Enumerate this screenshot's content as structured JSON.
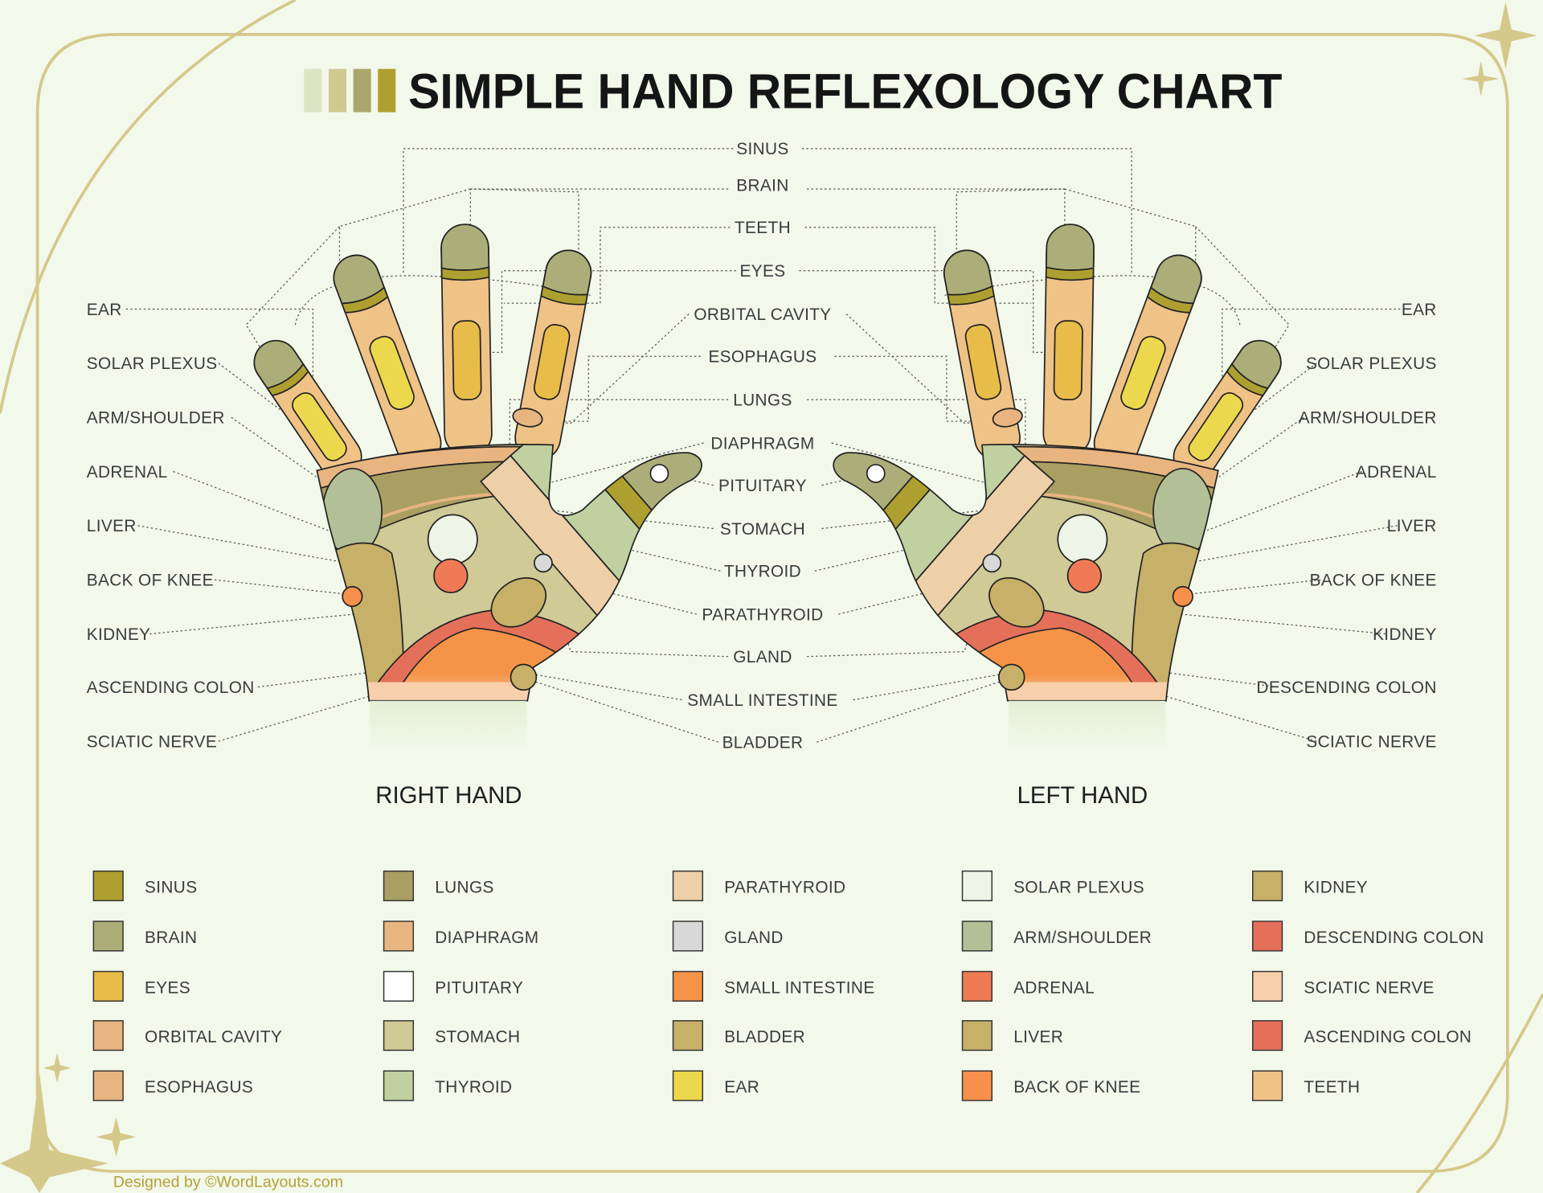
{
  "title": "SIMPLE HAND REFLEXOLOGY CHART",
  "title_swatches": [
    "#dce4c2",
    "#cfc990",
    "#a9a76c",
    "#ada030"
  ],
  "center_labels": [
    "SINUS",
    "BRAIN",
    "TEETH",
    "EYES",
    "ORBITAL CAVITY",
    "ESOPHAGUS",
    "LUNGS",
    "DIAPHRAGM",
    "PITUITARY",
    "STOMACH",
    "THYROID",
    "PARATHYROID",
    "GLAND",
    "SMALL INTESTINE",
    "BLADDER"
  ],
  "left_labels": [
    "EAR",
    "SOLAR PLEXUS",
    "ARM/SHOULDER",
    "ADRENAL",
    "LIVER",
    "BACK OF KNEE",
    "KIDNEY",
    "ASCENDING COLON",
    "SCIATIC NERVE"
  ],
  "right_labels": [
    "EAR",
    "SOLAR PLEXUS",
    "ARM/SHOULDER",
    "ADRENAL",
    "LIVER",
    "BACK OF KNEE",
    "KIDNEY",
    "DESCENDING COLON",
    "SCIATIC NERVE"
  ],
  "hands": {
    "right": "RIGHT HAND",
    "left": "LEFT HAND"
  },
  "legend": [
    [
      {
        "label": "SINUS",
        "color": "#aea030"
      },
      {
        "label": "BRAIN",
        "color": "#abae78"
      },
      {
        "label": "EYES",
        "color": "#e8bc48"
      },
      {
        "label": "ORBITAL CAVITY",
        "color": "#e8b580"
      },
      {
        "label": "ESOPHAGUS",
        "color": "#e8b580"
      }
    ],
    [
      {
        "label": "LUNGS",
        "color": "#aa9f62"
      },
      {
        "label": "DIAPHRAGM",
        "color": "#e8b580"
      },
      {
        "label": "PITUITARY",
        "color": "#ffffff"
      },
      {
        "label": "STOMACH",
        "color": "#cfca96"
      },
      {
        "label": "THYROID",
        "color": "#c0d0a0"
      }
    ],
    [
      {
        "label": "PARATHYROID",
        "color": "#edd0a8"
      },
      {
        "label": "GLAND",
        "color": "#d8d8d8"
      },
      {
        "label": "SMALL INTESTINE",
        "color": "#f59448"
      },
      {
        "label": "BLADDER",
        "color": "#c7b068"
      },
      {
        "label": "EAR",
        "color": "#ecd84c"
      }
    ],
    [
      {
        "label": "SOLAR PLEXUS",
        "color": "#eff5e6"
      },
      {
        "label": "ARM/SHOULDER",
        "color": "#b3bf96"
      },
      {
        "label": "ADRENAL",
        "color": "#f07a55"
      },
      {
        "label": "LIVER",
        "color": "#c7b068"
      },
      {
        "label": "BACK OF KNEE",
        "color": "#f7904a"
      }
    ],
    [
      {
        "label": "KIDNEY",
        "color": "#c7b068"
      },
      {
        "label": "DESCENDING COLON",
        "color": "#e5705a"
      },
      {
        "label": "SCIATIC NERVE",
        "color": "#f7cfaa"
      },
      {
        "label": "ASCENDING COLON",
        "color": "#e5705a"
      },
      {
        "label": "TEETH",
        "color": "#efc286"
      }
    ]
  ],
  "footer": "Designed by ©WordLayouts.com",
  "colors": {
    "background": "#f2f8ea",
    "frame": "#d4c98a",
    "footer": "#b3a235"
  }
}
